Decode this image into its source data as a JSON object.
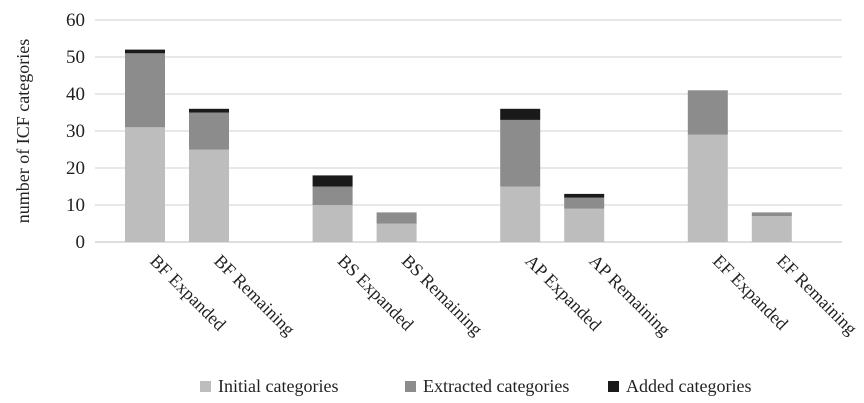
{
  "chart_data": {
    "type": "bar",
    "stacked": true,
    "ylabel": "number of ICF categories",
    "ylim": [
      0,
      60
    ],
    "yticks": [
      0,
      10,
      20,
      30,
      40,
      50,
      60
    ],
    "grid": true,
    "legend_position": "bottom",
    "groups": [
      [
        "BF Expanded",
        "BF Remaining"
      ],
      [
        "BS Expanded",
        "BS Remaining"
      ],
      [
        "AP Expanded",
        "AP Remaining"
      ],
      [
        "EF Expanded",
        "EF Remaining"
      ]
    ],
    "categories": [
      "BF Expanded",
      "BF Remaining",
      "BS Expanded",
      "BS Remaining",
      "AP Expanded",
      "AP Remaining",
      "EF Expanded",
      "EF Remaining"
    ],
    "series": [
      {
        "name": "Initial categories",
        "color": "#bdbdbd",
        "values": [
          31,
          25,
          10,
          5,
          15,
          9,
          29,
          7
        ]
      },
      {
        "name": "Extracted categories",
        "color": "#8c8c8c",
        "values": [
          20,
          10,
          5,
          3,
          18,
          3,
          12,
          1
        ]
      },
      {
        "name": "Added categories",
        "color": "#1a1a1a",
        "values": [
          1,
          1,
          3,
          0,
          3,
          1,
          0,
          0
        ]
      }
    ]
  }
}
